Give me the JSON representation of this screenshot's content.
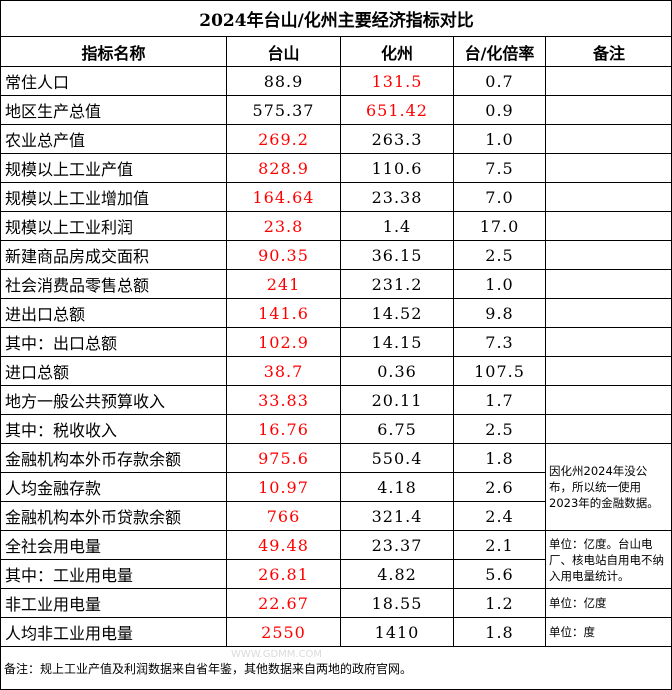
{
  "title": "2024年台山/化州主要经济指标对比",
  "headers": [
    "指标名称",
    "台山",
    "化州",
    "台/化倍率",
    "备注"
  ],
  "colors": {
    "higher": "#ff0000",
    "normal": "#000000"
  },
  "rows": [
    {
      "name": "常住人口",
      "taishan": "88.9",
      "huazhou": "131.5",
      "ratio": "0.7",
      "higher": "huazhou"
    },
    {
      "name": "地区生产总值",
      "taishan": "575.37",
      "huazhou": "651.42",
      "ratio": "0.9",
      "higher": "huazhou"
    },
    {
      "name": "农业总产值",
      "taishan": "269.2",
      "huazhou": "263.3",
      "ratio": "1.0",
      "higher": "taishan"
    },
    {
      "name": "规模以上工业产值",
      "taishan": "828.9",
      "huazhou": "110.6",
      "ratio": "7.5",
      "higher": "taishan"
    },
    {
      "name": "规模以上工业增加值",
      "taishan": "164.64",
      "huazhou": "23.38",
      "ratio": "7.0",
      "higher": "taishan"
    },
    {
      "name": "规模以上工业利润",
      "taishan": "23.8",
      "huazhou": "1.4",
      "ratio": "17.0",
      "higher": "taishan"
    },
    {
      "name": "新建商品房成交面积",
      "taishan": "90.35",
      "huazhou": "36.15",
      "ratio": "2.5",
      "higher": "taishan"
    },
    {
      "name": "社会消费品零售总额",
      "taishan": "241",
      "huazhou": "231.2",
      "ratio": "1.0",
      "higher": "taishan"
    },
    {
      "name": "进出口总额",
      "taishan": "141.6",
      "huazhou": "14.52",
      "ratio": "9.8",
      "higher": "taishan"
    },
    {
      "name": "其中：出口总额",
      "taishan": "102.9",
      "huazhou": "14.15",
      "ratio": "7.3",
      "higher": "taishan"
    },
    {
      "name": "进口总额",
      "taishan": "38.7",
      "huazhou": "0.36",
      "ratio": "107.5",
      "higher": "taishan"
    },
    {
      "name": "地方一般公共预算收入",
      "taishan": "33.83",
      "huazhou": "20.11",
      "ratio": "1.7",
      "higher": "taishan"
    },
    {
      "name": "其中：税收收入",
      "taishan": "16.76",
      "huazhou": "6.75",
      "ratio": "2.5",
      "higher": "taishan"
    },
    {
      "name": "金融机构本外币存款余额",
      "taishan": "975.6",
      "huazhou": "550.4",
      "ratio": "1.8",
      "higher": "taishan"
    },
    {
      "name": "人均金融存款",
      "taishan": "10.97",
      "huazhou": "4.18",
      "ratio": "2.6",
      "higher": "taishan"
    },
    {
      "name": "金融机构本外币贷款余额",
      "taishan": "766",
      "huazhou": "321.4",
      "ratio": "2.4",
      "higher": "taishan"
    },
    {
      "name": "全社会用电量",
      "taishan": "49.48",
      "huazhou": "23.37",
      "ratio": "2.1",
      "higher": "taishan"
    },
    {
      "name": "其中：工业用电量",
      "taishan": "26.81",
      "huazhou": "4.82",
      "ratio": "5.6",
      "higher": "taishan"
    },
    {
      "name": "非工业用电量",
      "taishan": "22.67",
      "huazhou": "18.55",
      "ratio": "1.2",
      "higher": "taishan"
    },
    {
      "name": "人均非工业用电量",
      "taishan": "2550",
      "huazhou": "1410",
      "ratio": "1.8",
      "higher": "taishan"
    }
  ],
  "notes": [
    {
      "start": 13,
      "span": 3,
      "text": "因化州2024年没公布，所以统一使用2023年的金融数据。"
    },
    {
      "start": 16,
      "span": 2,
      "text": "单位：亿度。台山电厂、核电站自用电不纳入用电量统计。"
    },
    {
      "start": 18,
      "span": 1,
      "text": "单位：亿度"
    },
    {
      "start": 19,
      "span": 1,
      "text": "单位：度"
    }
  ],
  "footer": "备注：规上工业产值及利润数据来自省年鉴，其他数据来自两地的政府官网。",
  "watermark": "WWW.GDMM.COM"
}
